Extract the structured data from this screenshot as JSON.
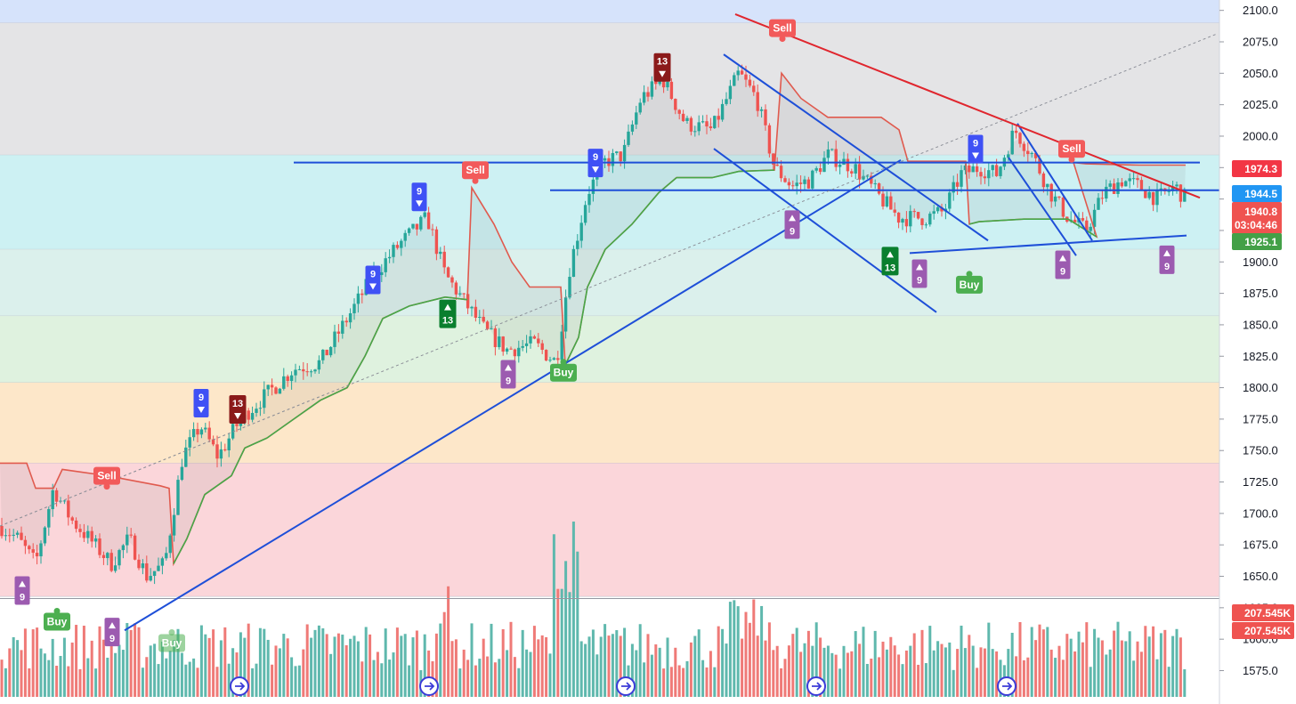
{
  "price_axis": {
    "ticks": [
      "2100.0",
      "2075.0",
      "2050.0",
      "2025.0",
      "2000.0",
      "1975.0",
      "1950.0",
      "1925.0",
      "1900.0",
      "1875.0",
      "1850.0",
      "1825.0",
      "1800.0",
      "1775.0",
      "1750.0",
      "1725.0",
      "1700.0",
      "1675.0",
      "1650.0",
      "1625.0",
      "1600.0",
      "1575.0"
    ],
    "tick_values": [
      2100,
      2075,
      2050,
      2025,
      2000,
      1975,
      1950,
      1925,
      1900,
      1875,
      1850,
      1825,
      1800,
      1775,
      1750,
      1725,
      1700,
      1675,
      1650,
      1625,
      1600,
      1575
    ]
  },
  "labels": {
    "upper_line": "1974.3",
    "last_price": "1944.5",
    "close_value": "1940.8",
    "countdown": "03:04:46",
    "lower_line": "1925.1",
    "volume_1": "207.545K",
    "volume_2": "207.545K"
  },
  "colors": {
    "up": "#26a69a",
    "down": "#ef5350",
    "sell": "#f23645",
    "buy": "#43a047",
    "trend": "#1e4fd8",
    "upper_label": "#f23645",
    "last_label": "#2196f3",
    "lower_label": "#43a047",
    "count_blue": "#3f51f5",
    "count_purple": "#9c5bb0",
    "count_darkred": "#8b1a1a",
    "count_green": "#0a7f2e"
  },
  "zones": [
    {
      "from": 2090,
      "to": 2110,
      "color": "#d6e3fb"
    },
    {
      "from": 1985,
      "to": 2090,
      "color": "#e4e4e6"
    },
    {
      "from": 1910,
      "to": 1985,
      "color": "#cdf1f3"
    },
    {
      "from": 1857,
      "to": 1910,
      "color": "#dbf0ec"
    },
    {
      "from": 1804,
      "to": 1857,
      "color": "#dff2df"
    },
    {
      "from": 1740,
      "to": 1804,
      "color": "#fde7c9"
    },
    {
      "from": 1634,
      "to": 1740,
      "color": "#fbd6da"
    }
  ],
  "signals": [
    {
      "text": "Sell",
      "kind": "sell",
      "x": 120,
      "price": 1737
    },
    {
      "text": "Sell",
      "kind": "sell",
      "x": 534,
      "price": 1980
    },
    {
      "text": "Sell",
      "kind": "sell",
      "x": 879,
      "price": 2093
    },
    {
      "text": "Sell",
      "kind": "sell",
      "x": 1204,
      "price": 1997
    },
    {
      "text": "Buy",
      "kind": "buy",
      "x": 64,
      "price": 1621
    },
    {
      "text": "Buy",
      "kind": "buy",
      "x": 633,
      "price": 1819
    },
    {
      "text": "Buy",
      "kind": "buy",
      "x": 1089,
      "price": 1889
    },
    {
      "text": "Buy",
      "kind": "buy_faded",
      "x": 193,
      "price": 1604
    }
  ],
  "counts": [
    {
      "text": "9",
      "dir": "down",
      "color": "blue",
      "x": 226,
      "price": 1799
    },
    {
      "text": "9",
      "dir": "down",
      "color": "blue",
      "x": 419,
      "price": 1897
    },
    {
      "text": "9",
      "dir": "down",
      "color": "blue",
      "x": 471,
      "price": 1963
    },
    {
      "text": "9",
      "dir": "down",
      "color": "blue",
      "x": 669,
      "price": 1990
    },
    {
      "text": "9",
      "dir": "down",
      "color": "blue",
      "x": 1096,
      "price": 2001
    },
    {
      "text": "13",
      "dir": "down",
      "color": "darkred",
      "x": 267,
      "price": 1794
    },
    {
      "text": "13",
      "dir": "down",
      "color": "darkred",
      "x": 744,
      "price": 2066
    },
    {
      "text": "9",
      "dir": "up",
      "color": "purple",
      "x": 25,
      "price": 1650
    },
    {
      "text": "9",
      "dir": "up",
      "color": "purple",
      "x": 126,
      "price": 1617
    },
    {
      "text": "9",
      "dir": "up",
      "color": "purple",
      "x": 571,
      "price": 1822
    },
    {
      "text": "9",
      "dir": "up",
      "color": "purple",
      "x": 890,
      "price": 1941
    },
    {
      "text": "9",
      "dir": "up",
      "color": "purple",
      "x": 1033,
      "price": 1902
    },
    {
      "text": "9",
      "dir": "up",
      "color": "purple",
      "x": 1194,
      "price": 1909
    },
    {
      "text": "9",
      "dir": "up",
      "color": "purple",
      "x": 1311,
      "price": 1913
    },
    {
      "text": "13",
      "dir": "up",
      "color": "green",
      "x": 1000,
      "price": 1912
    },
    {
      "text": "13",
      "dir": "up",
      "color": "green",
      "x": 503,
      "price": 1870
    }
  ],
  "trendlines": [
    {
      "name": "major-uptrend",
      "x1": 140,
      "p1": 1607,
      "x2": 1012,
      "p2": 1981,
      "color": "blue"
    },
    {
      "name": "horizontal-resistance",
      "x1": 330,
      "p1": 1979,
      "x2": 1348,
      "p2": 1979,
      "color": "blue"
    },
    {
      "name": "horizontal-support",
      "x1": 618,
      "p1": 1957,
      "x2": 1383,
      "p2": 1957,
      "color": "blue"
    },
    {
      "name": "channel-upper",
      "x1": 813,
      "p1": 2065,
      "x2": 1110,
      "p2": 1917,
      "color": "blue"
    },
    {
      "name": "channel-lower",
      "x1": 802,
      "p1": 1990,
      "x2": 1052,
      "p2": 1860,
      "color": "blue"
    },
    {
      "name": "falling-wedge-1",
      "x1": 1143,
      "p1": 2010,
      "x2": 1227,
      "p2": 1917,
      "color": "blue"
    },
    {
      "name": "falling-wedge-2",
      "x1": 1133,
      "p1": 1983,
      "x2": 1209,
      "p2": 1905,
      "color": "blue"
    },
    {
      "name": "rising-support",
      "x1": 1022,
      "p1": 1907,
      "x2": 1333,
      "p2": 1921,
      "color": "blue"
    },
    {
      "name": "descending-resistance",
      "x1": 826,
      "p1": 2097,
      "x2": 1348,
      "p2": 1951,
      "color": "red"
    },
    {
      "name": "dotted-trend",
      "x1": 0,
      "p1": 1690,
      "x2": 1366,
      "p2": 2081,
      "color": "gray"
    }
  ]
}
